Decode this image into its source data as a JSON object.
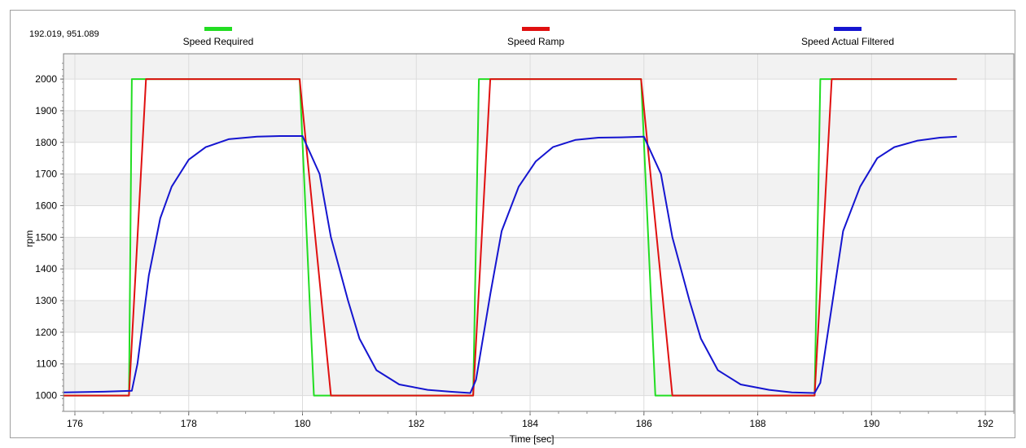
{
  "readout": "192.019, 951.089",
  "colors": {
    "required": "#22dd22",
    "ramp": "#e01010",
    "actual": "#1515d0",
    "grid": "#dcdcdc",
    "band": "#f2f2f2"
  },
  "chart_data": {
    "type": "line",
    "title": "",
    "xlabel": "Time [sec]",
    "ylabel": "rpm",
    "xlim": [
      175.8,
      192.5
    ],
    "ylim": [
      950,
      2080
    ],
    "xticks": [
      176,
      178,
      180,
      182,
      184,
      186,
      188,
      190,
      192
    ],
    "yticks": [
      1000,
      1100,
      1200,
      1300,
      1400,
      1500,
      1600,
      1700,
      1800,
      1900,
      2000
    ],
    "xtick_labels": [
      "176",
      "178",
      "180",
      "182",
      "184",
      "186",
      "188",
      "190",
      "192"
    ],
    "ytick_labels": [
      "1000",
      "1100",
      "1200",
      "1300",
      "1400",
      "1500",
      "1600",
      "1700",
      "1800",
      "1900",
      "2000"
    ],
    "legend_position": "top",
    "grid": true,
    "series": [
      {
        "name": "Speed Required",
        "color": "#22dd22",
        "x": [
          175.8,
          176.95,
          177.0,
          179.95,
          180.2,
          183.0,
          183.1,
          185.95,
          186.2,
          189.0,
          189.1,
          191.5
        ],
        "y": [
          1000,
          1000,
          2000,
          2000,
          1000,
          1000,
          2000,
          2000,
          1000,
          1000,
          2000,
          2000
        ]
      },
      {
        "name": "Speed Ramp",
        "color": "#e01010",
        "x": [
          175.8,
          176.95,
          177.25,
          179.95,
          180.5,
          183.0,
          183.3,
          185.95,
          186.5,
          189.0,
          189.3,
          191.5
        ],
        "y": [
          1000,
          1000,
          2000,
          2000,
          1000,
          1000,
          2000,
          2000,
          1000,
          1000,
          2000,
          2000
        ]
      },
      {
        "name": "Speed Actual Filtered",
        "color": "#1515d0",
        "x": [
          175.8,
          176.5,
          177.0,
          177.1,
          177.3,
          177.5,
          177.7,
          178.0,
          178.3,
          178.7,
          179.2,
          179.6,
          180.0,
          180.3,
          180.5,
          180.8,
          181.0,
          181.3,
          181.7,
          182.2,
          182.6,
          182.95,
          183.05,
          183.3,
          183.5,
          183.8,
          184.1,
          184.4,
          184.8,
          185.2,
          185.6,
          186.0,
          186.3,
          186.5,
          186.8,
          187.0,
          187.3,
          187.7,
          188.2,
          188.6,
          189.0,
          189.1,
          189.3,
          189.5,
          189.8,
          190.1,
          190.4,
          190.8,
          191.2,
          191.5
        ],
        "y": [
          1010,
          1012,
          1015,
          1100,
          1380,
          1560,
          1660,
          1745,
          1785,
          1810,
          1818,
          1820,
          1820,
          1700,
          1500,
          1300,
          1180,
          1080,
          1035,
          1018,
          1012,
          1008,
          1050,
          1320,
          1520,
          1660,
          1740,
          1785,
          1808,
          1815,
          1816,
          1818,
          1700,
          1500,
          1300,
          1180,
          1080,
          1035,
          1018,
          1010,
          1008,
          1040,
          1280,
          1520,
          1660,
          1750,
          1785,
          1805,
          1815,
          1818
        ]
      }
    ]
  }
}
